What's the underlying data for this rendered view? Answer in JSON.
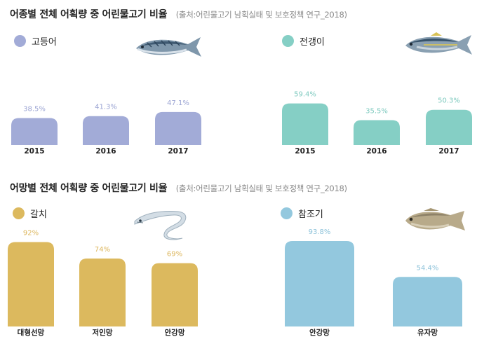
{
  "titles": {
    "top": "어종별 전체 어획량 중 어린물고기 비율",
    "top_source": "(출처:어린물고기 남획실태 및 보호정책 연구_2018)",
    "bottom": "어망별 전체 어획량 중 어린물고기 비율",
    "bottom_source": "(출처:어린물고기 남획실태 및 보호정책 연구_2018)"
  },
  "chart_data": [
    {
      "type": "bar",
      "series": [
        {
          "name": "고등어",
          "values": [
            38.5,
            41.3,
            47.1
          ]
        }
      ],
      "categories": [
        "2015",
        "2016",
        "2017"
      ],
      "labels": [
        "38.5%",
        "41.3%",
        "47.1%"
      ],
      "color": "#a2abd7",
      "label_color": "#9ba4d3",
      "icon": "mackerel-icon"
    },
    {
      "type": "bar",
      "series": [
        {
          "name": "전갱이",
          "values": [
            59.4,
            35.5,
            50.3
          ]
        }
      ],
      "categories": [
        "2015",
        "2016",
        "2017"
      ],
      "labels": [
        "59.4%",
        "35.5%",
        "50.3%"
      ],
      "color": "#85cfc5",
      "label_color": "#7fcabf",
      "icon": "horse-mackerel-icon"
    },
    {
      "type": "bar",
      "series": [
        {
          "name": "갈치",
          "values": [
            92,
            74,
            69
          ]
        }
      ],
      "categories": [
        "대형선망",
        "저인망",
        "안강망"
      ],
      "labels": [
        "92%",
        "74%",
        "69%"
      ],
      "color": "#dcb95e",
      "label_color": "#dcb55a",
      "icon": "hairtail-icon"
    },
    {
      "type": "bar",
      "series": [
        {
          "name": "참조기",
          "values": [
            93.8,
            54.4
          ]
        }
      ],
      "categories": [
        "안강망",
        "유자망"
      ],
      "labels": [
        "93.8%",
        "54.4%"
      ],
      "color": "#93c8de",
      "label_color": "#8ec3da",
      "icon": "croaker-icon"
    }
  ]
}
